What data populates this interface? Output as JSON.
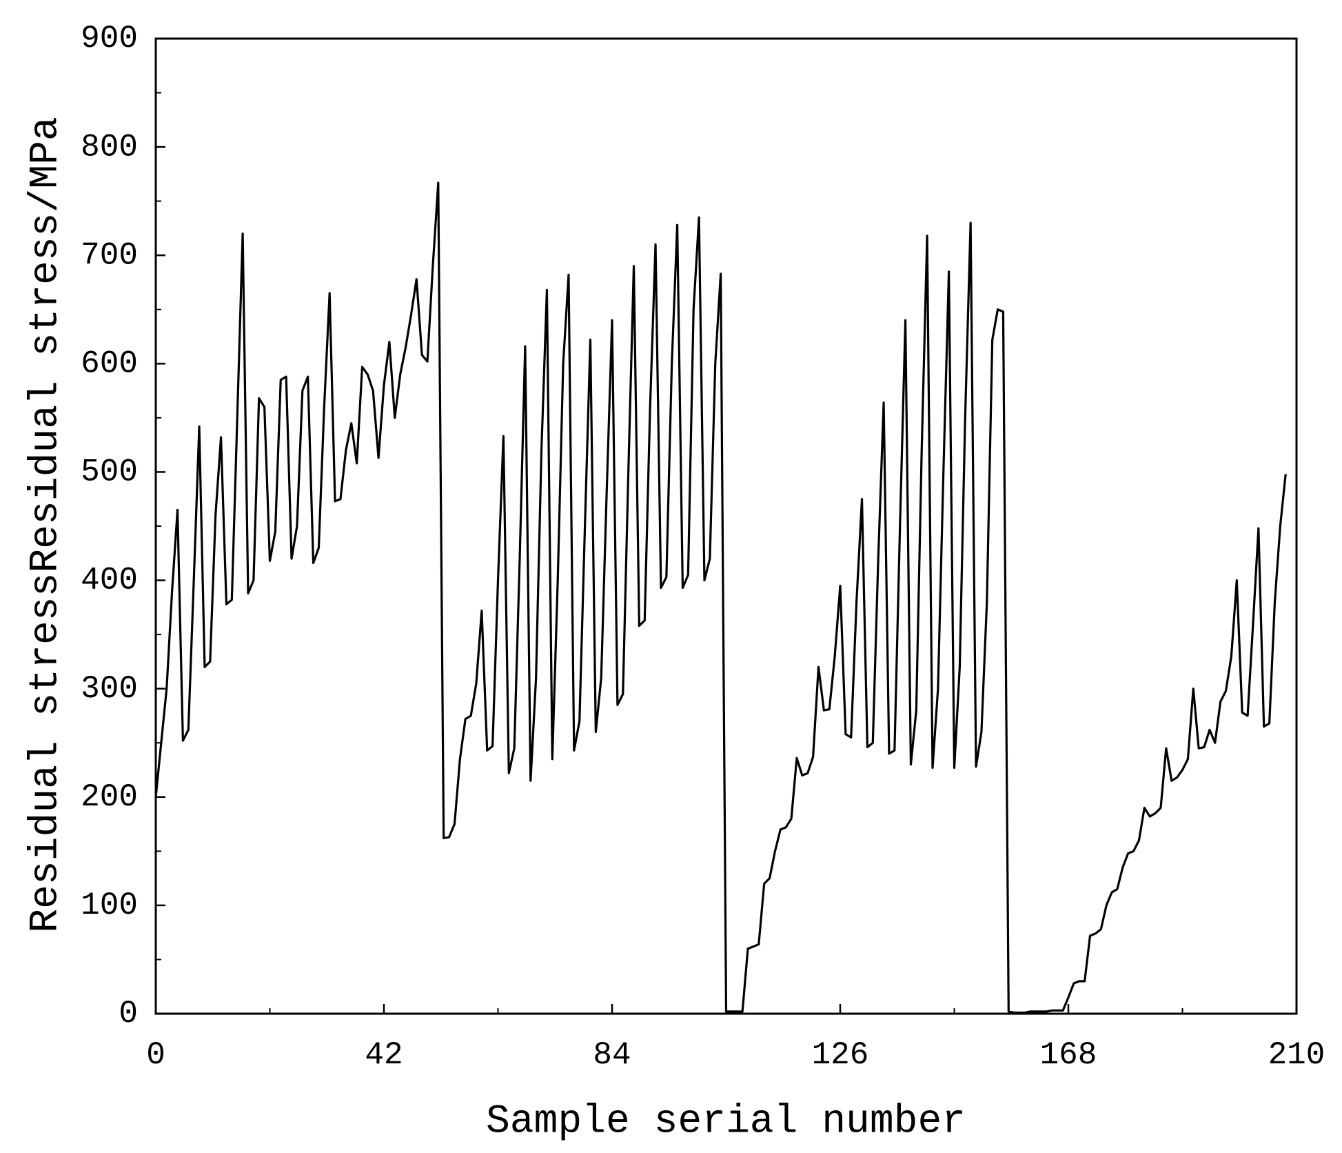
{
  "chart_data": {
    "type": "line",
    "xlabel": "Sample serial number",
    "ylabel": "Residual stressResidual stress/MPa",
    "xlim": [
      0,
      210
    ],
    "xticks": [
      0,
      42,
      84,
      126,
      168,
      210
    ],
    "ylim": [
      0,
      900
    ],
    "yticks": [
      0,
      100,
      200,
      300,
      400,
      500,
      600,
      700,
      800,
      900
    ],
    "x": [
      0,
      1,
      2,
      3,
      4,
      5,
      6,
      7,
      8,
      9,
      10,
      11,
      12,
      13,
      14,
      15,
      16,
      17,
      18,
      19,
      20,
      21,
      22,
      23,
      24,
      25,
      26,
      27,
      28,
      29,
      30,
      31,
      32,
      33,
      34,
      35,
      36,
      37,
      38,
      39,
      40,
      41,
      42,
      43,
      44,
      45,
      46,
      47,
      48,
      49,
      50,
      51,
      52,
      53,
      54,
      55,
      56,
      57,
      58,
      59,
      60,
      61,
      62,
      63,
      64,
      65,
      66,
      67,
      68,
      69,
      70,
      71,
      72,
      73,
      74,
      75,
      76,
      77,
      78,
      79,
      80,
      81,
      82,
      83,
      84,
      85,
      86,
      87,
      88,
      89,
      90,
      91,
      92,
      93,
      94,
      95,
      96,
      97,
      98,
      99,
      100,
      101,
      102,
      103,
      104,
      105,
      106,
      107,
      108,
      109,
      110,
      111,
      112,
      113,
      114,
      115,
      116,
      117,
      118,
      119,
      120,
      121,
      122,
      123,
      124,
      125,
      126,
      127,
      128,
      129,
      130,
      131,
      132,
      133,
      134,
      135,
      136,
      137,
      138,
      139,
      140,
      141,
      142,
      143,
      144,
      145,
      146,
      147,
      148,
      149,
      150,
      151,
      152,
      153,
      154,
      155,
      156,
      157,
      158,
      159,
      160,
      161,
      162,
      163,
      164,
      165,
      166,
      167,
      168,
      169,
      170,
      171,
      172,
      173,
      174,
      175,
      176,
      177,
      178,
      179,
      180,
      181,
      182,
      183,
      184,
      185,
      186,
      187,
      188,
      189,
      190,
      191,
      192,
      193,
      194,
      195,
      196,
      197,
      198,
      199,
      200,
      201,
      202,
      203,
      204,
      205,
      206,
      207,
      208
    ],
    "series": [
      {
        "color": "#000000",
        "values": [
          200,
          250,
          300,
          390,
          465,
          252,
          262,
          400,
          542,
          320,
          325,
          460,
          532,
          378,
          382,
          550,
          720,
          388,
          400,
          568,
          560,
          418,
          445,
          585,
          588,
          420,
          450,
          575,
          588,
          416,
          430,
          560,
          665,
          473,
          475,
          520,
          545,
          508,
          597,
          590,
          575,
          513,
          580,
          620,
          550,
          590,
          615,
          645,
          678,
          608,
          602,
          690,
          767,
          162,
          163,
          175,
          235,
          272,
          275,
          305,
          372,
          243,
          247,
          400,
          533,
          222,
          245,
          420,
          616,
          215,
          310,
          520,
          668,
          235,
          400,
          600,
          682,
          243,
          270,
          450,
          622,
          260,
          310,
          480,
          640,
          285,
          295,
          500,
          690,
          358,
          363,
          560,
          710,
          393,
          403,
          600,
          728,
          393,
          405,
          650,
          735,
          400,
          420,
          600,
          683,
          2,
          2,
          2,
          2,
          60,
          62,
          64,
          120,
          125,
          150,
          170,
          172,
          180,
          236,
          220,
          222,
          237,
          320,
          280,
          281,
          330,
          395,
          258,
          255,
          380,
          475,
          246,
          250,
          420,
          564,
          240,
          243,
          450,
          640,
          230,
          280,
          520,
          718,
          227,
          300,
          500,
          685,
          227,
          320,
          550,
          730,
          228,
          260,
          380,
          622,
          650,
          648,
          2,
          1,
          1,
          1,
          2,
          2,
          2,
          2,
          3,
          3,
          3,
          15,
          28,
          30,
          30,
          72,
          74,
          78,
          100,
          112,
          115,
          135,
          148,
          150,
          160,
          190,
          182,
          185,
          190,
          245,
          215,
          218,
          225,
          235,
          300,
          245,
          246,
          262,
          250,
          288,
          298,
          330,
          400,
          278,
          275,
          360,
          448,
          265,
          268,
          380,
          450,
          498
        ]
      }
    ]
  }
}
